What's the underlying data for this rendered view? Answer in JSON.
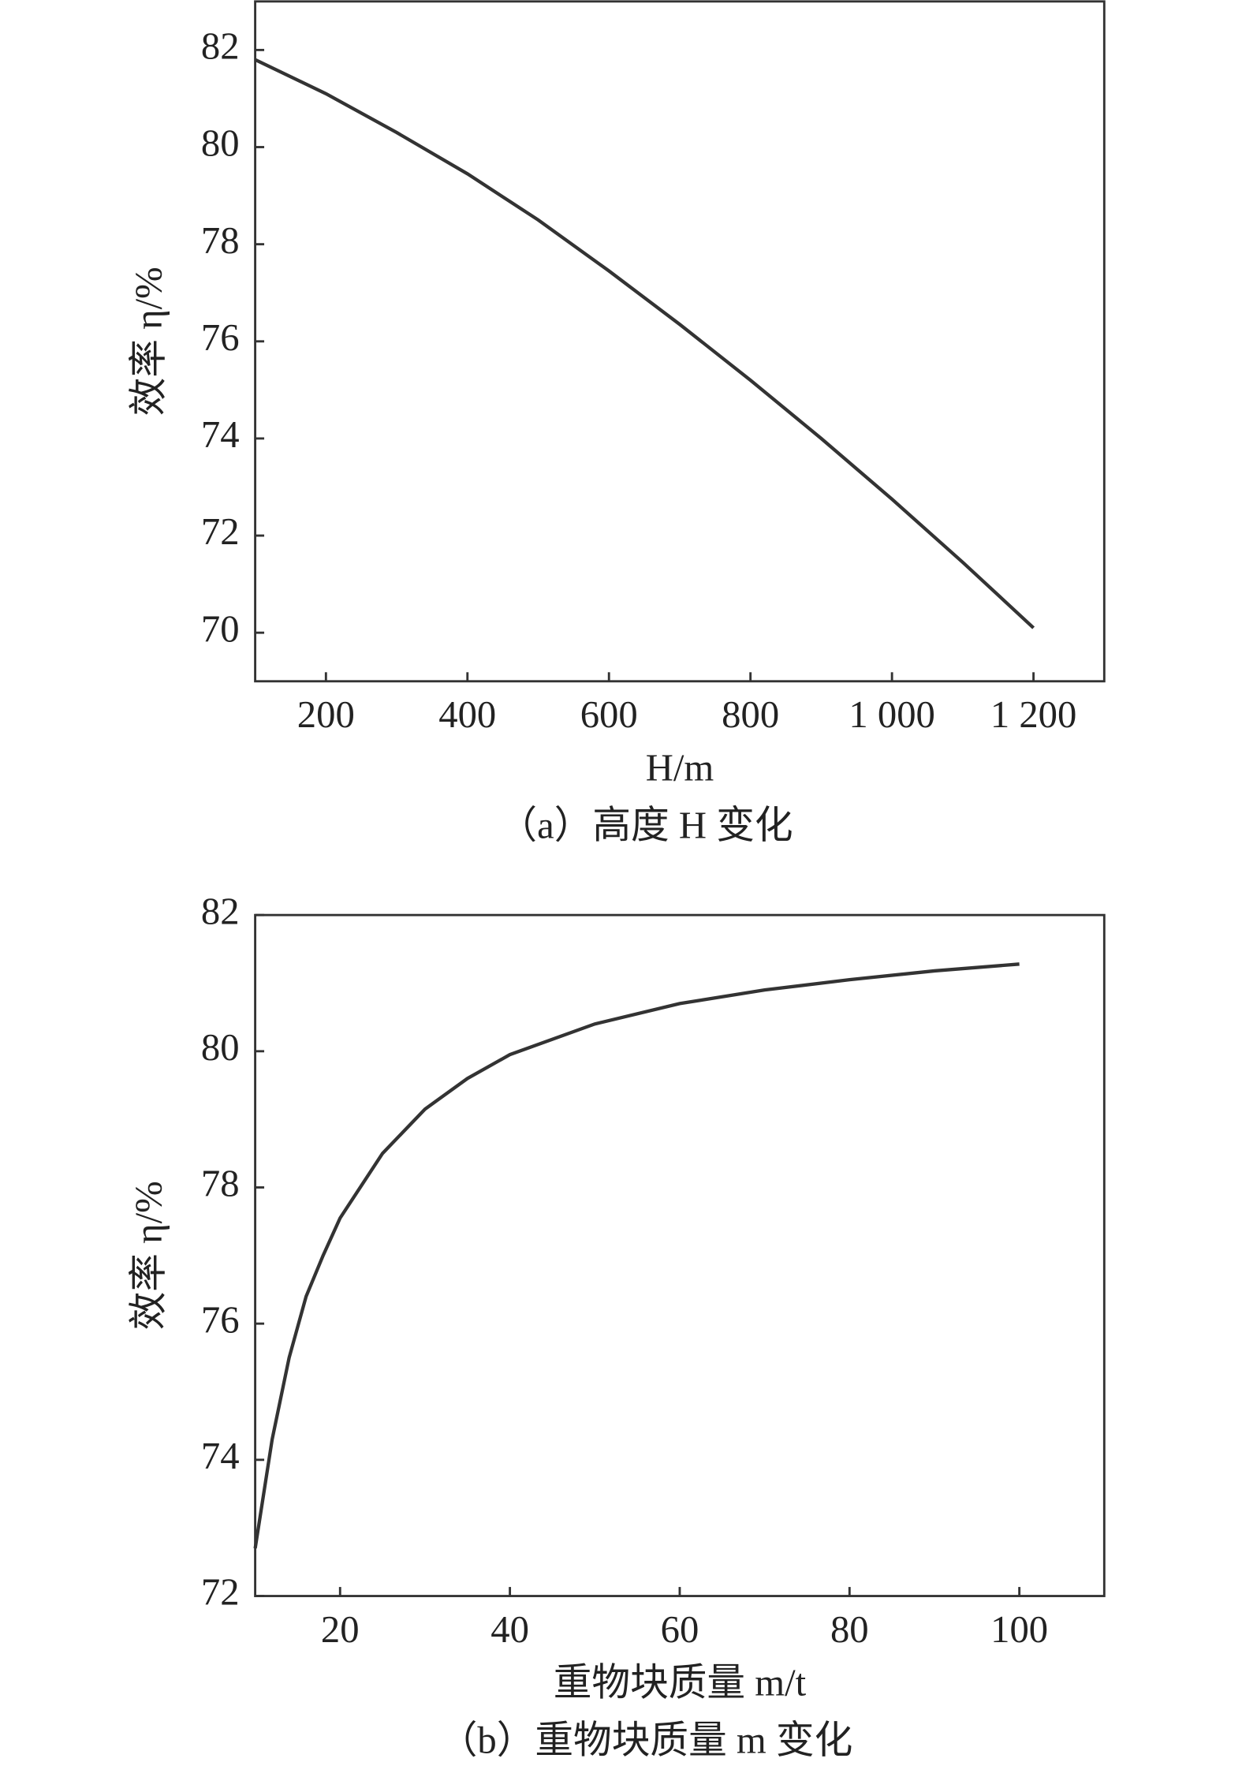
{
  "chart_data": [
    {
      "type": "line",
      "x_label": "H/m",
      "y_label": "效率 η/%",
      "caption": "（a）高度 H 变化",
      "x": [
        100,
        200,
        300,
        400,
        500,
        600,
        700,
        800,
        900,
        1000,
        1100,
        1200
      ],
      "series": [
        {
          "color": "#333333",
          "values": [
            81.8,
            81.1,
            80.3,
            79.45,
            78.5,
            77.45,
            76.35,
            75.2,
            74.0,
            72.75,
            71.45,
            70.1
          ]
        }
      ],
      "xlim": [
        100,
        1300
      ],
      "ylim": [
        69,
        83
      ],
      "xticks": [
        200,
        400,
        600,
        800,
        {
          "value": 1000,
          "label": "1 000"
        },
        {
          "value": 1200,
          "label": "1 200"
        }
      ],
      "yticks": [
        70,
        72,
        74,
        76,
        78,
        80,
        82
      ]
    },
    {
      "type": "line",
      "x_label": "重物块质量 m/t",
      "y_label": "效率 η/%",
      "caption": "（b）重物块质量 m 变化",
      "x": [
        10,
        12,
        14,
        16,
        18,
        20,
        25,
        30,
        35,
        40,
        50,
        60,
        70,
        80,
        90,
        100
      ],
      "series": [
        {
          "color": "#333333",
          "values": [
            72.7,
            74.3,
            75.5,
            76.4,
            77.0,
            77.55,
            78.5,
            79.15,
            79.6,
            79.95,
            80.4,
            80.7,
            80.9,
            81.05,
            81.18,
            81.28
          ]
        }
      ],
      "xlim": [
        10,
        110
      ],
      "ylim": [
        72,
        82
      ],
      "xticks": [
        20,
        40,
        60,
        80,
        100
      ],
      "yticks": [
        72,
        74,
        76,
        78,
        80,
        82
      ]
    }
  ]
}
